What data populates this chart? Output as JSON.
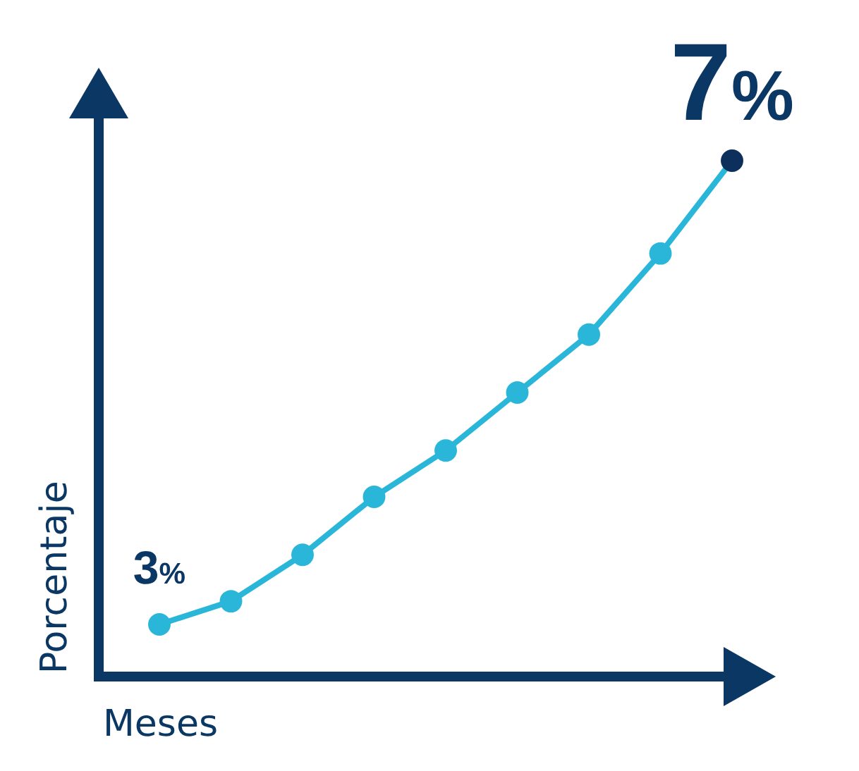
{
  "chart_data": {
    "type": "line",
    "xlabel": "Meses",
    "ylabel": "Porcentaje",
    "categories": [
      null,
      null,
      null,
      null,
      null,
      null,
      null,
      null,
      null
    ],
    "series": [
      {
        "color": "#29b6d8",
        "colors": [
          "#29b6d8",
          "#29b6d8",
          "#29b6d8",
          "#29b6d8",
          "#29b6d8",
          "#29b6d8",
          "#29b6d8",
          "#29b6d8",
          "#0c2f5c"
        ],
        "values": [
          3,
          3.2,
          3.6,
          4.1,
          4.5,
          5.0,
          5.5,
          6.2,
          7
        ],
        "value_labels": [
          "3%",
          null,
          null,
          null,
          null,
          null,
          null,
          null,
          "7%"
        ]
      }
    ],
    "marker": "circle",
    "line_style": "solid"
  }
}
